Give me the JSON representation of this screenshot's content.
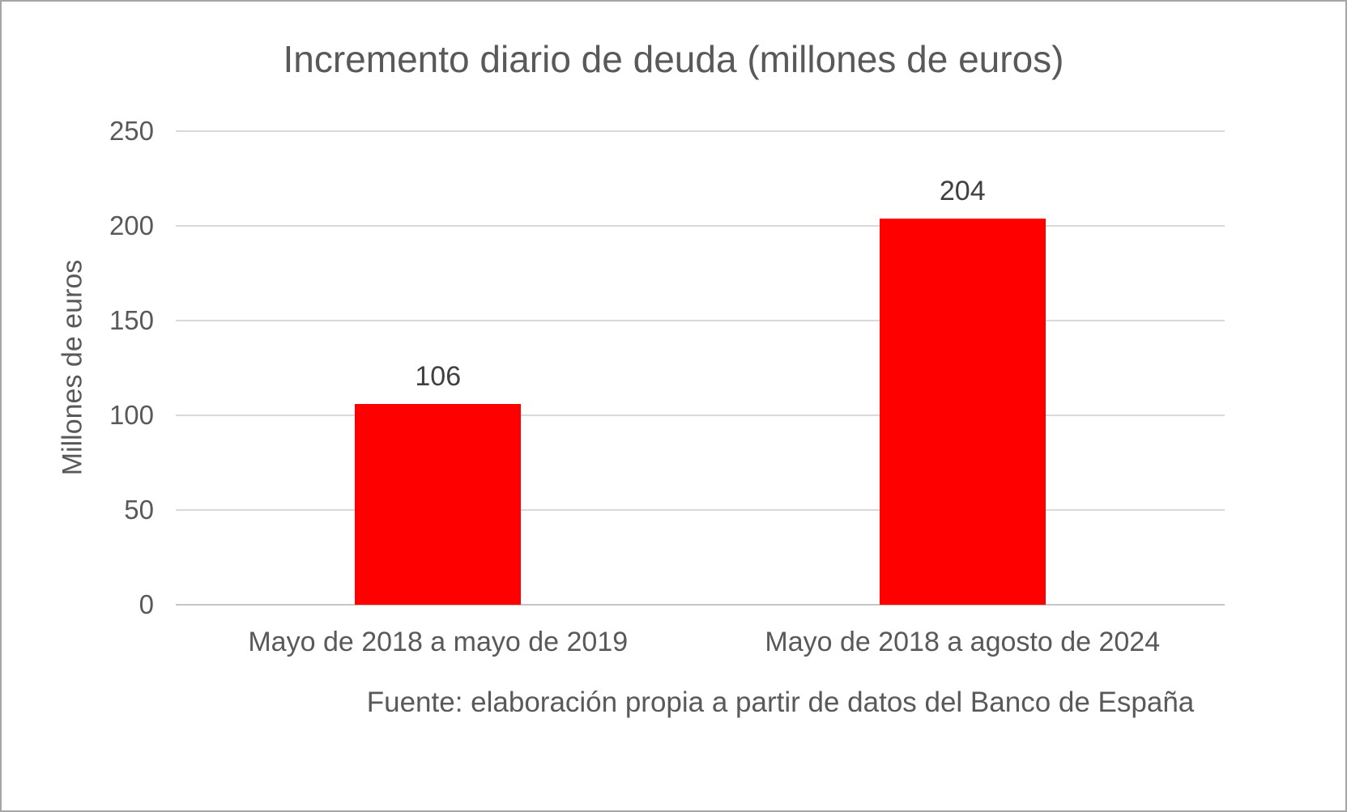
{
  "chart_data": {
    "type": "bar",
    "title": "Incremento diario de deuda (millones de euros)",
    "categories": [
      "Mayo de 2018 a mayo de 2019",
      "Mayo de 2018 a agosto de 2024"
    ],
    "values": [
      106,
      204
    ],
    "data_labels": [
      "106",
      "204"
    ],
    "xlabel": "",
    "ylabel": "Millones de euros",
    "ylim": [
      0,
      250
    ],
    "yticks": [
      0,
      50,
      100,
      150,
      200,
      250
    ],
    "grid": true,
    "legend": false,
    "bar_color": "#ff0000",
    "source_note": "Fuente: elaboración propia a partir de datos del Banco de España"
  },
  "colors": {
    "bar": "#ff0000",
    "title_text": "#595959",
    "axis_text": "#595959",
    "data_label_text": "#404040",
    "gridline": "#d9d9d9",
    "axis_line": "#c6c6c6",
    "frame_border": "#a6a6a6",
    "background": "#ffffff"
  }
}
